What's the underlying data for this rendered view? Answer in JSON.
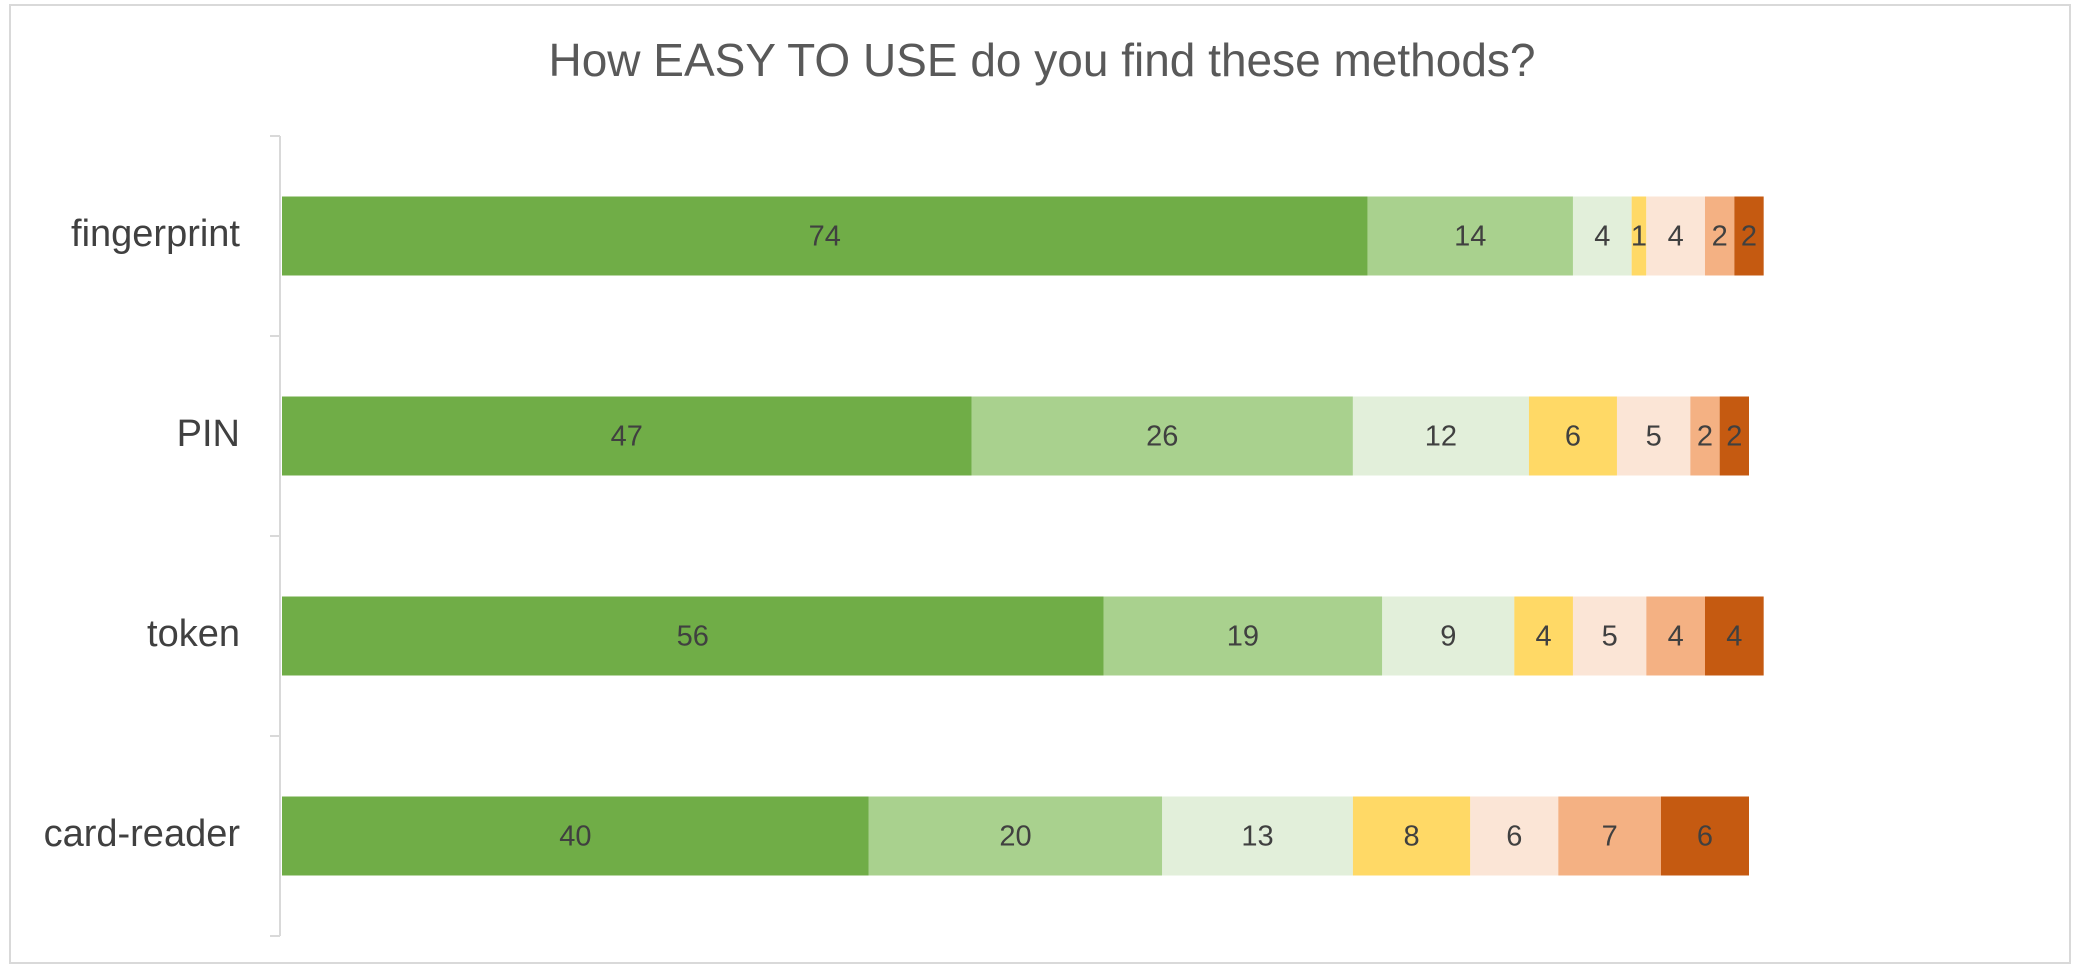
{
  "chart_data": {
    "type": "stacked_bar_horizontal",
    "title": "How EASY TO USE do you find these methods?",
    "categories": [
      "fingerprint",
      "PIN",
      "token",
      "card-reader"
    ],
    "series": [
      {
        "color": "#70ad47",
        "values": [
          74,
          47,
          56,
          40
        ]
      },
      {
        "color": "#a9d18e",
        "values": [
          14,
          26,
          19,
          20
        ]
      },
      {
        "color": "#e2efda",
        "values": [
          4,
          12,
          9,
          13
        ]
      },
      {
        "color": "#ffd966",
        "values": [
          1,
          6,
          4,
          8
        ]
      },
      {
        "color": "#fbe5d6",
        "values": [
          4,
          5,
          5,
          6
        ]
      },
      {
        "color": "#f4b183",
        "values": [
          2,
          2,
          4,
          7
        ]
      },
      {
        "color": "#c55a11",
        "values": [
          2,
          2,
          4,
          6
        ]
      }
    ]
  }
}
